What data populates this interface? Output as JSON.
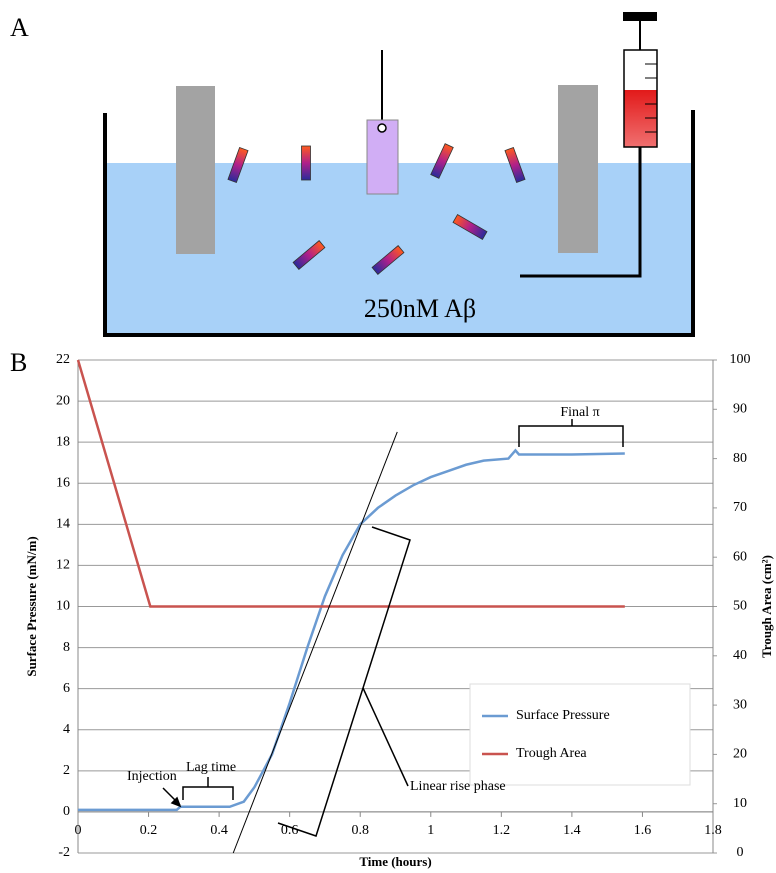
{
  "figure": {
    "panel_a_label": "A",
    "panel_a_caption": "250nM Aβ",
    "panel_b_label": "B"
  },
  "chart_data": {
    "type": "line",
    "x_label": "Time (hours)",
    "y_label": "Surface Pressure (mN/m)",
    "y2_label": "Trough Area (cm²)",
    "xlim": [
      0,
      1.8
    ],
    "xticks": [
      0,
      0.2,
      0.4,
      0.6,
      0.8,
      1,
      1.2,
      1.4,
      1.6,
      1.8
    ],
    "ylim": [
      -2,
      22
    ],
    "yticks": [
      -2,
      0,
      2,
      4,
      6,
      8,
      10,
      12,
      14,
      16,
      18,
      20,
      22
    ],
    "y2lim": [
      0,
      100
    ],
    "y2ticks": [
      0,
      10,
      20,
      30,
      40,
      50,
      60,
      70,
      80,
      90,
      100
    ],
    "grid": true,
    "legend": "lower right",
    "series": [
      {
        "name": "Surface Pressure",
        "color": "#6b9bd2",
        "x": [
          0,
          0.1,
          0.2,
          0.28,
          0.29,
          0.35,
          0.43,
          0.47,
          0.5,
          0.55,
          0.6,
          0.65,
          0.7,
          0.75,
          0.8,
          0.85,
          0.9,
          0.95,
          1.0,
          1.05,
          1.1,
          1.15,
          1.22,
          1.24,
          1.25,
          1.3,
          1.4,
          1.55
        ],
        "values": [
          0.1,
          0.1,
          0.1,
          0.1,
          0.25,
          0.25,
          0.25,
          0.5,
          1.2,
          2.8,
          5.3,
          8,
          10.5,
          12.5,
          14,
          14.8,
          15.4,
          15.9,
          16.3,
          16.6,
          16.9,
          17.1,
          17.2,
          17.6,
          17.4,
          17.4,
          17.4,
          17.45
        ]
      },
      {
        "name": "Trough Area",
        "color": "#c9534f",
        "axis": "y2",
        "x": [
          0,
          0.205,
          1.55
        ],
        "values": [
          100,
          50,
          50
        ]
      }
    ],
    "fit_line": {
      "color": "#000000",
      "x": [
        0.44,
        0.905
      ],
      "values": [
        -2,
        18.5
      ]
    },
    "annotations": [
      {
        "text": "Injection"
      },
      {
        "text": "Lag time"
      },
      {
        "text": "Linear rise phase"
      },
      {
        "text": "Final π"
      }
    ]
  }
}
